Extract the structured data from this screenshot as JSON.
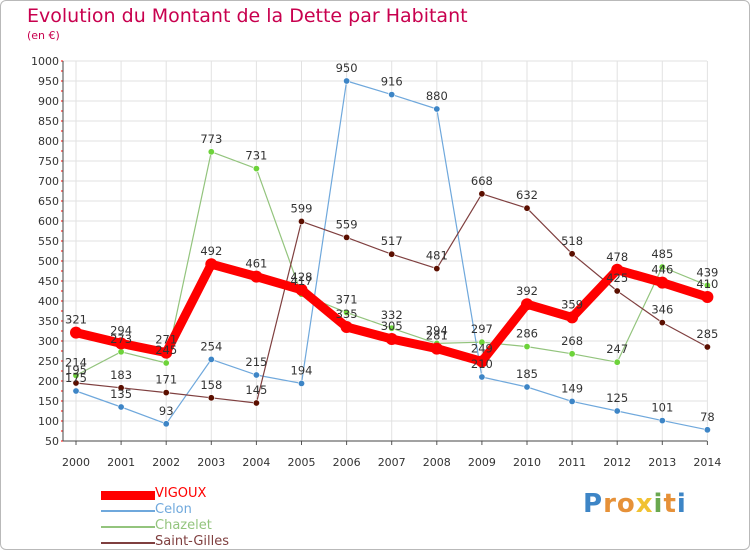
{
  "header": {
    "title": "Evolution du Montant de la Dette par Habitant",
    "subtitle": "(en €)"
  },
  "colors": {
    "title": "#c8004e",
    "axis_text": "#333333",
    "grid": "#e2e2e2",
    "tick_red": "#ff0000"
  },
  "chart_data": {
    "type": "line",
    "title": "Evolution du Montant de la Dette par Habitant",
    "subtitle": "(en €)",
    "x": [
      "2000",
      "2001",
      "2002",
      "2003",
      "2004",
      "2005",
      "2006",
      "2007",
      "2008",
      "2009",
      "2010",
      "2011",
      "2012",
      "2013",
      "2014"
    ],
    "yticks": [
      50,
      100,
      150,
      200,
      250,
      300,
      350,
      400,
      450,
      500,
      550,
      600,
      650,
      700,
      750,
      800,
      850,
      900,
      950,
      1000
    ],
    "ylim": [
      50,
      1000
    ],
    "grid": true,
    "legend_position": "bottom-left",
    "series": [
      {
        "name": "VIGOUX",
        "color": "#ff0000",
        "width": 9,
        "marker": 6,
        "values": [
          321,
          294,
          271,
          492,
          461,
          428,
          335,
          305,
          281,
          249,
          392,
          359,
          478,
          446,
          410
        ],
        "labels": [
          "321",
          "294",
          "271",
          "492",
          "461",
          "428",
          "335",
          "305",
          "281",
          "249",
          "392",
          "359",
          "478",
          "446",
          "410"
        ]
      },
      {
        "name": "Celon",
        "color": "#6fa8dc",
        "marker_color": "#3d85c6",
        "width": 1.2,
        "marker": 3.2,
        "values": [
          175,
          135,
          93,
          254,
          215,
          194,
          950,
          916,
          880,
          210,
          185,
          149,
          125,
          101,
          78
        ],
        "labels": [
          "175",
          "135",
          "93",
          "254",
          "215",
          "194",
          "950",
          "916",
          "880",
          "210",
          "185",
          "149",
          "125",
          "101",
          "78"
        ]
      },
      {
        "name": "Chazelet",
        "color": "#93c47d",
        "marker_color": "#6dd33a",
        "width": 1.2,
        "marker": 3.2,
        "values": [
          214,
          273,
          245,
          773,
          731,
          417,
          371,
          332,
          294,
          297,
          286,
          268,
          247,
          485,
          439
        ],
        "labels": [
          "214",
          "273",
          "245",
          "773",
          "731",
          "417",
          "371",
          "332",
          "294",
          "297",
          "286",
          "268",
          "247",
          "485",
          "439"
        ]
      },
      {
        "name": "Saint-Gilles",
        "color": "#7f3f3f",
        "marker_color": "#5b0f00",
        "width": 1.2,
        "marker": 3.2,
        "values": [
          195,
          183,
          171,
          158,
          145,
          599,
          559,
          517,
          481,
          668,
          632,
          518,
          425,
          346,
          285
        ],
        "labels": [
          "195",
          "183",
          "171",
          "158",
          "145",
          "599",
          "559",
          "517",
          "481",
          "668",
          "632",
          "518",
          "425",
          "346",
          "285"
        ]
      }
    ]
  },
  "logo": {
    "letters": [
      "P",
      "r",
      "o",
      "x",
      "i",
      "t",
      "i"
    ],
    "colors": [
      "#3d85c6",
      "#e69138",
      "#e69138",
      "#f1c232",
      "#6aa84f",
      "#e69138",
      "#3d85c6"
    ]
  }
}
